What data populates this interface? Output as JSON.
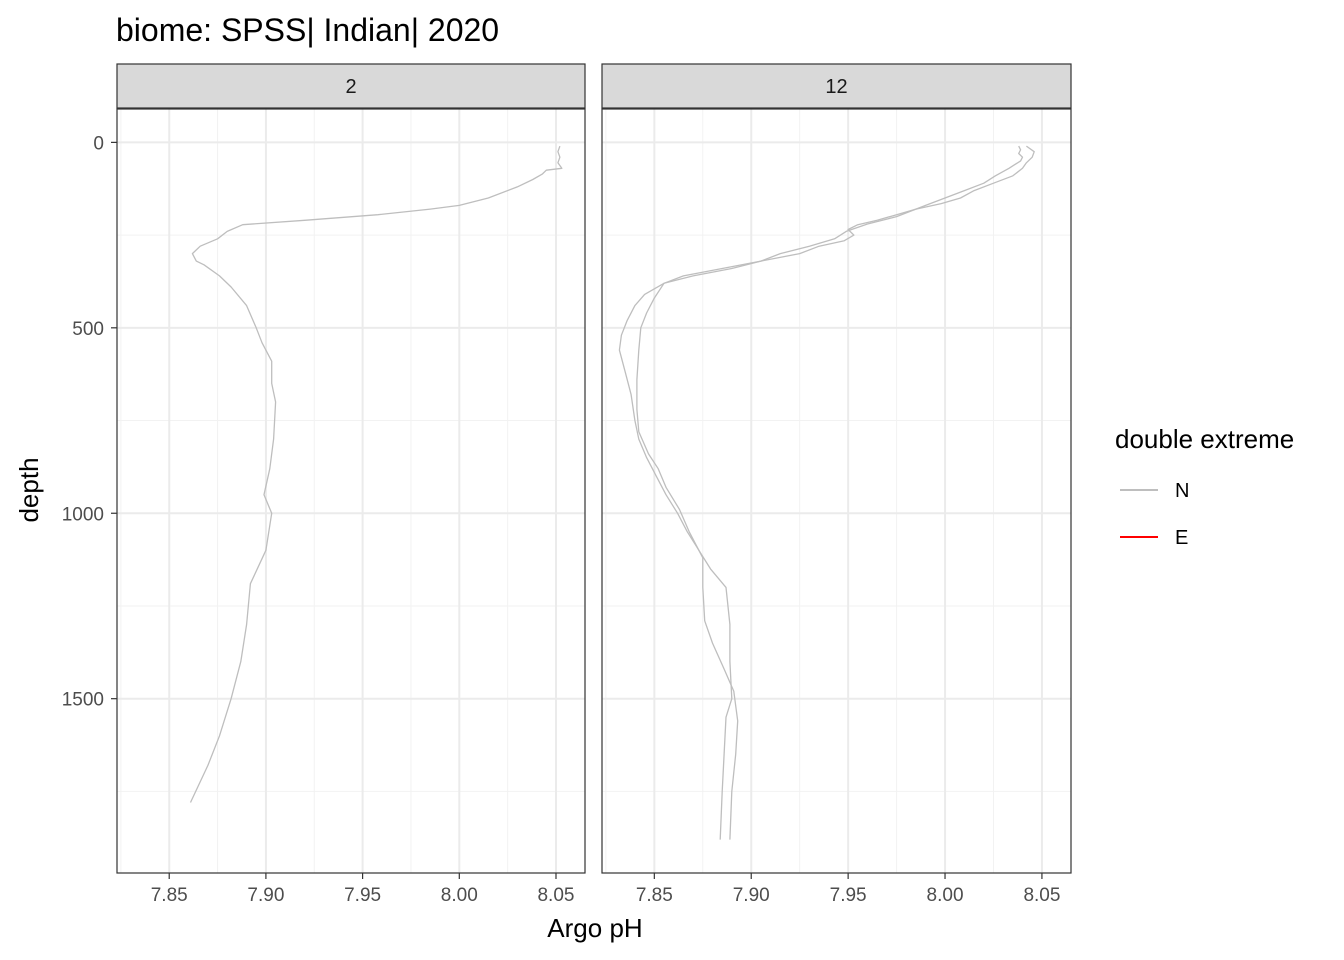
{
  "chart_data": {
    "type": "line",
    "title": "biome: SPSS| Indian| 2020",
    "xlabel": "Argo pH",
    "ylabel": "depth",
    "xlim": [
      7.823,
      8.065
    ],
    "ylim": [
      -90,
      1970
    ],
    "y_reversed": true,
    "x_ticks": [
      7.85,
      7.9,
      7.95,
      8.0,
      8.05
    ],
    "x_tick_labels": [
      "7.85",
      "7.90",
      "7.95",
      "8.00",
      "8.05"
    ],
    "y_ticks": [
      0,
      500,
      1000,
      1500
    ],
    "y_tick_labels": [
      "0",
      "500",
      "1000",
      "1500"
    ],
    "grid": true,
    "legend": {
      "title": "double extreme",
      "position": "right",
      "entries": [
        {
          "label": "N",
          "color": "#bebebe"
        },
        {
          "label": "E",
          "color": "#ff0000"
        }
      ]
    },
    "facets": [
      {
        "label": "2",
        "series": [
          {
            "group": "N",
            "points": [
              [
                8.052,
                10
              ],
              [
                8.051,
                25
              ],
              [
                8.052,
                40
              ],
              [
                8.051,
                55
              ],
              [
                8.053,
                70
              ],
              [
                8.045,
                75
              ],
              [
                8.043,
                85
              ],
              [
                8.038,
                100
              ],
              [
                8.03,
                120
              ],
              [
                8.015,
                150
              ],
              [
                8.0,
                170
              ],
              [
                7.985,
                180
              ],
              [
                7.958,
                195
              ],
              [
                7.92,
                210
              ],
              [
                7.888,
                222
              ],
              [
                7.88,
                240
              ],
              [
                7.875,
                260
              ],
              [
                7.866,
                280
              ],
              [
                7.862,
                300
              ],
              [
                7.864,
                320
              ],
              [
                7.868,
                330
              ],
              [
                7.876,
                360
              ],
              [
                7.882,
                390
              ],
              [
                7.89,
                440
              ],
              [
                7.895,
                500
              ],
              [
                7.898,
                540
              ],
              [
                7.903,
                590
              ],
              [
                7.903,
                650
              ],
              [
                7.905,
                700
              ],
              [
                7.904,
                800
              ],
              [
                7.902,
                880
              ],
              [
                7.899,
                950
              ],
              [
                7.903,
                1000
              ],
              [
                7.9,
                1100
              ],
              [
                7.892,
                1190
              ],
              [
                7.89,
                1300
              ],
              [
                7.887,
                1400
              ],
              [
                7.882,
                1500
              ],
              [
                7.876,
                1600
              ],
              [
                7.87,
                1680
              ],
              [
                7.861,
                1780
              ]
            ]
          }
        ]
      },
      {
        "label": "12",
        "series": [
          {
            "group": "N",
            "points": [
              [
                8.038,
                10
              ],
              [
                8.039,
                20
              ],
              [
                8.038,
                30
              ],
              [
                8.04,
                40
              ],
              [
                8.039,
                50
              ],
              [
                8.036,
                60
              ],
              [
                8.033,
                70
              ],
              [
                8.026,
                90
              ],
              [
                8.02,
                110
              ],
              [
                8.01,
                130
              ],
              [
                8.0,
                150
              ],
              [
                7.99,
                170
              ],
              [
                7.975,
                200
              ],
              [
                7.96,
                220
              ],
              [
                7.949,
                240
              ],
              [
                7.943,
                260
              ],
              [
                7.93,
                280
              ],
              [
                7.915,
                300
              ],
              [
                7.905,
                320
              ],
              [
                7.89,
                340
              ],
              [
                7.87,
                360
              ],
              [
                7.855,
                380
              ],
              [
                7.845,
                410
              ],
              [
                7.84,
                440
              ],
              [
                7.836,
                480
              ],
              [
                7.833,
                520
              ],
              [
                7.832,
                560
              ],
              [
                7.835,
                620
              ],
              [
                7.838,
                680
              ],
              [
                7.84,
                750
              ],
              [
                7.842,
                800
              ],
              [
                7.846,
                850
              ],
              [
                7.851,
                900
              ],
              [
                7.856,
                950
              ],
              [
                7.862,
                1000
              ],
              [
                7.867,
                1050
              ],
              [
                7.873,
                1100
              ],
              [
                7.879,
                1150
              ],
              [
                7.887,
                1200
              ],
              [
                7.889,
                1300
              ],
              [
                7.889,
                1400
              ],
              [
                7.89,
                1500
              ],
              [
                7.887,
                1550
              ],
              [
                7.886,
                1650
              ],
              [
                7.885,
                1750
              ],
              [
                7.884,
                1880
              ]
            ]
          },
          {
            "group": "N",
            "points": [
              [
                8.042,
                10
              ],
              [
                8.046,
                25
              ],
              [
                8.045,
                40
              ],
              [
                8.042,
                55
              ],
              [
                8.04,
                70
              ],
              [
                8.035,
                90
              ],
              [
                8.025,
                110
              ],
              [
                8.015,
                130
              ],
              [
                8.008,
                150
              ],
              [
                7.998,
                165
              ],
              [
                7.985,
                180
              ],
              [
                7.975,
                195
              ],
              [
                7.965,
                210
              ],
              [
                7.955,
                222
              ],
              [
                7.95,
                235
              ],
              [
                7.953,
                250
              ],
              [
                7.948,
                265
              ],
              [
                7.935,
                280
              ],
              [
                7.925,
                300
              ],
              [
                7.905,
                320
              ],
              [
                7.885,
                340
              ],
              [
                7.865,
                360
              ],
              [
                7.855,
                380
              ],
              [
                7.85,
                420
              ],
              [
                7.846,
                460
              ],
              [
                7.843,
                500
              ],
              [
                7.842,
                560
              ],
              [
                7.841,
                640
              ],
              [
                7.841,
                720
              ],
              [
                7.842,
                780
              ],
              [
                7.847,
                840
              ],
              [
                7.852,
                880
              ],
              [
                7.856,
                930
              ],
              [
                7.863,
                990
              ],
              [
                7.868,
                1050
              ],
              [
                7.875,
                1120
              ],
              [
                7.875,
                1200
              ],
              [
                7.876,
                1290
              ],
              [
                7.88,
                1350
              ],
              [
                7.886,
                1420
              ],
              [
                7.891,
                1480
              ],
              [
                7.893,
                1560
              ],
              [
                7.892,
                1650
              ],
              [
                7.89,
                1750
              ],
              [
                7.889,
                1880
              ]
            ]
          }
        ]
      }
    ]
  }
}
